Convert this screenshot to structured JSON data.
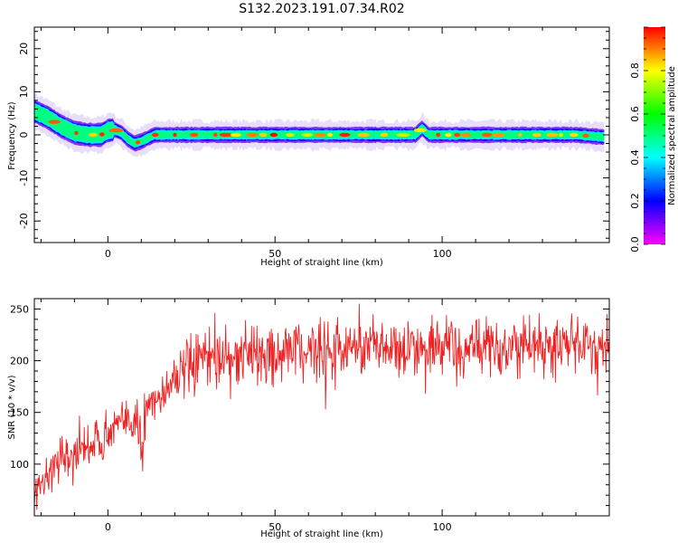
{
  "title": "S132.2023.191.07.34.R02",
  "colors": {
    "snr_line": "#ee2222",
    "colormap": [
      "#ff00ff",
      "#0000ff",
      "#00ffff",
      "#00ff00",
      "#ffff00",
      "#ff0000"
    ]
  },
  "chart_data": [
    {
      "type": "heatmap",
      "xlabel": "Height of straight line (km)",
      "ylabel": "Frequency (Hz)",
      "xlim": [
        -22,
        150
      ],
      "ylim": [
        -25,
        25
      ],
      "xticks": [
        0,
        50,
        100
      ],
      "yticks": [
        -20,
        -10,
        0,
        10,
        20
      ],
      "ridge": {
        "x": [
          -22,
          -18,
          -14,
          -10,
          -6,
          -2,
          0,
          2,
          4,
          6,
          8,
          10,
          14,
          20,
          40,
          60,
          80,
          92,
          94,
          96,
          100,
          120,
          140,
          148
        ],
        "y": [
          5.5,
          4,
          2,
          0.5,
          0,
          0,
          1,
          1.2,
          0.5,
          -1,
          -2,
          -1.5,
          0,
          0,
          0,
          0,
          0,
          0,
          1.5,
          0,
          0,
          0,
          0,
          -0.5
        ]
      },
      "colorbar": {
        "label": "Normalized spectral amplitude",
        "range": [
          0,
          1
        ],
        "ticks": [
          0.0,
          0.2,
          0.4,
          0.6,
          0.8
        ]
      }
    },
    {
      "type": "line",
      "xlabel": "Height of straight line (km)",
      "ylabel": "SNR (10 * v/v)",
      "xlim": [
        -22,
        150
      ],
      "ylim": [
        50,
        260
      ],
      "xticks": [
        0,
        50,
        100
      ],
      "yticks": [
        100,
        150,
        200,
        250
      ],
      "series": [
        {
          "trend_x": [
            -22,
            -15,
            -8,
            0,
            5,
            10,
            15,
            20,
            30,
            40,
            60,
            80,
            100,
            120,
            150
          ],
          "trend_y": [
            75,
            100,
            112,
            130,
            140,
            150,
            165,
            185,
            200,
            205,
            210,
            212,
            212,
            213,
            215
          ],
          "noise": 18
        }
      ]
    }
  ]
}
